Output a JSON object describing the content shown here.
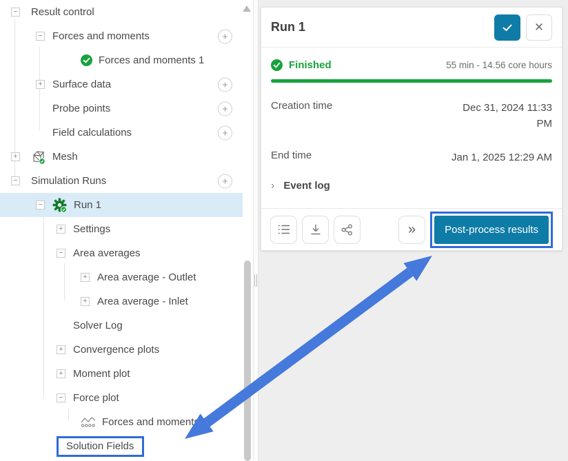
{
  "tree": {
    "rows": [
      {
        "label": "Result control",
        "level": 0,
        "toggle": "minus"
      },
      {
        "label": "Forces and moments",
        "level": 1,
        "toggle": "minus",
        "add_button": true
      },
      {
        "label": "Forces and moments 1",
        "level": 3,
        "icon": "check-circle-icon"
      },
      {
        "label": "Surface data",
        "level": 1,
        "toggle": "plus",
        "add_button": true
      },
      {
        "label": "Probe points",
        "level": 1,
        "add_button": true
      },
      {
        "label": "Field calculations",
        "level": 1,
        "add_button": true
      },
      {
        "label": "Mesh",
        "level": 0,
        "toggle": "plus",
        "icon": "mesh-icon"
      },
      {
        "label": "Simulation Runs",
        "level": 0,
        "toggle": "minus",
        "add_button": true
      },
      {
        "label": "Run 1",
        "level": 1,
        "toggle": "minus",
        "icon": "gear-icon",
        "selected": true
      },
      {
        "label": "Settings",
        "level": 2,
        "toggle": "plus"
      },
      {
        "label": "Area averages",
        "level": 2,
        "toggle": "minus"
      },
      {
        "label": "Area average - Outlet",
        "level": 3,
        "toggle": "plus"
      },
      {
        "label": "Area average - Inlet",
        "level": 3,
        "toggle": "plus"
      },
      {
        "label": "Solver Log",
        "level": 2
      },
      {
        "label": "Convergence plots",
        "level": 2,
        "toggle": "plus"
      },
      {
        "label": "Moment plot",
        "level": 2,
        "toggle": "plus"
      },
      {
        "label": "Force plot",
        "level": 2,
        "toggle": "minus"
      },
      {
        "label": "Forces and moments 1",
        "level": 3,
        "icon": "chart-icon"
      },
      {
        "label": "Solution Fields",
        "level": 2,
        "highlight_box": true
      }
    ]
  },
  "panel": {
    "title": "Run 1",
    "status": {
      "label": "Finished",
      "detail": "55 min - 14.56 core hours"
    },
    "fields": [
      {
        "label": "Creation time",
        "value": "Dec 31, 2024 11:33 PM"
      },
      {
        "label": "End time",
        "value": "Jan 1, 2025 12:29 AM"
      }
    ],
    "event_log_label": "Event log",
    "toolbar": {
      "icons": [
        "list-icon",
        "download-icon",
        "share-icon"
      ],
      "expand_label": "»",
      "post_process_label": "Post-process results"
    }
  },
  "colors": {
    "accent_teal": "#0e7ca6",
    "status_green": "#17a33c",
    "highlight_outline_blue": "#2f6cd8",
    "annotation_arrow_blue": "#4579db",
    "selected_row_blue": "#d8ebf7"
  }
}
